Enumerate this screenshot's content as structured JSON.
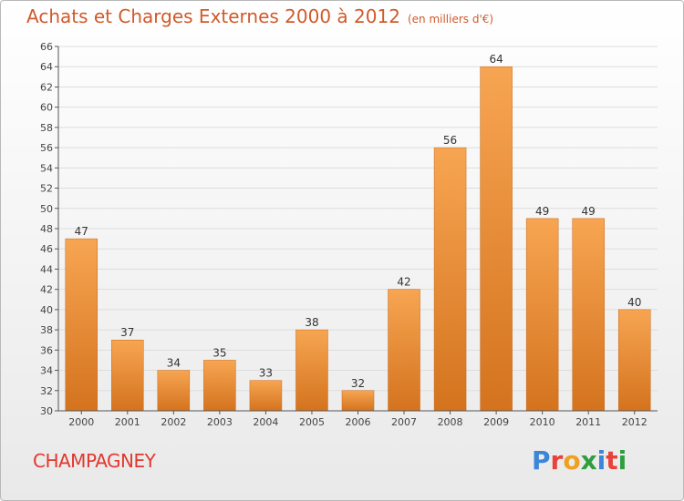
{
  "header": {
    "title": "Achats et Charges Externes 2000 à 2012",
    "unit": "(en milliers d'€)"
  },
  "footer": {
    "commune": "CHAMPAGNEY",
    "brand": "Proxiti",
    "brand_colors": [
      "#3b86d8",
      "#e8423a",
      "#f0a020",
      "#2e9e3e",
      "#3b86d8",
      "#e8423a",
      "#2e9e3e"
    ]
  },
  "colors": {
    "bar_light": "#f7a552",
    "bar_dark": "#d4731e",
    "axis": "#555555",
    "grid": "#dddddd",
    "title": "#d05a2a"
  },
  "chart_data": {
    "type": "bar",
    "categories": [
      "2000",
      "2001",
      "2002",
      "2003",
      "2004",
      "2005",
      "2006",
      "2007",
      "2008",
      "2009",
      "2010",
      "2011",
      "2012"
    ],
    "values": [
      47,
      37,
      34,
      35,
      33,
      38,
      32,
      42,
      56,
      64,
      49,
      49,
      40
    ],
    "title": "Achats et Charges Externes 2000 à 2012",
    "xlabel": "",
    "ylabel": "",
    "ylim": [
      30,
      66
    ],
    "yticks": [
      30,
      32,
      34,
      36,
      38,
      40,
      42,
      44,
      46,
      48,
      50,
      52,
      54,
      56,
      58,
      60,
      62,
      64,
      66
    ],
    "grid": true,
    "legend": "none"
  }
}
